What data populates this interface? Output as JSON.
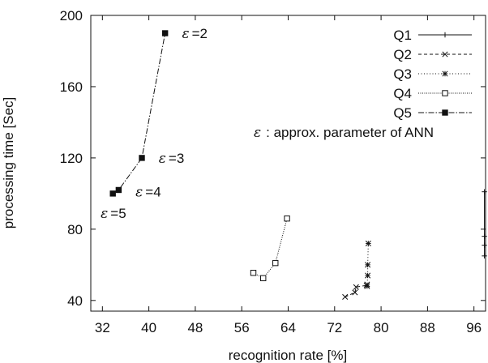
{
  "chart_data": {
    "type": "line",
    "xlabel": "recognition rate [%]",
    "ylabel": "processing time [Sec]",
    "xlim": [
      30,
      98
    ],
    "ylim": [
      34,
      200
    ],
    "xticks": [
      32,
      40,
      48,
      56,
      64,
      72,
      80,
      88,
      96
    ],
    "yticks": [
      40,
      80,
      120,
      160,
      200
    ],
    "legend_position": "top-right",
    "legend_note": ": approx. parameter of ANN",
    "legend_note_symbol": "ε",
    "series": [
      {
        "name": "Q1",
        "marker": "plus",
        "dash": "none",
        "x": [
          97.8,
          97.8,
          97.8,
          97.8
        ],
        "y": [
          65,
          71,
          76,
          101
        ]
      },
      {
        "name": "Q2",
        "marker": "cross",
        "dash": "4,3",
        "x": [
          73.8,
          75.5,
          75.7,
          77.5,
          77.6
        ],
        "y": [
          42,
          44.5,
          47.5,
          48.5,
          49
        ]
      },
      {
        "name": "Q3",
        "marker": "asterisk",
        "dash": "1,2.5",
        "x": [
          77.6,
          77.7,
          77.7,
          77.8
        ],
        "y": [
          48,
          54,
          60,
          72
        ]
      },
      {
        "name": "Q4",
        "marker": "square-open",
        "dash": "1,1.5",
        "x": [
          58,
          59.7,
          61.8,
          63.8
        ],
        "y": [
          55.5,
          52.5,
          61,
          86
        ]
      },
      {
        "name": "Q5",
        "marker": "square-filled",
        "dash": "7,2,1.5,2",
        "x": [
          33.8,
          34.8,
          38.8,
          42.8
        ],
        "y": [
          100,
          102,
          120,
          190
        ]
      }
    ],
    "annotations": [
      {
        "symbol": "ε",
        "text": "=2",
        "x": 45.7,
        "y": 190
      },
      {
        "symbol": "ε",
        "text": "=3",
        "x": 41.7,
        "y": 120
      },
      {
        "symbol": "ε",
        "text": "=4",
        "x": 37.7,
        "y": 101
      },
      {
        "symbol": "ε",
        "text": "=5",
        "x": 31.7,
        "y": 89
      }
    ]
  }
}
